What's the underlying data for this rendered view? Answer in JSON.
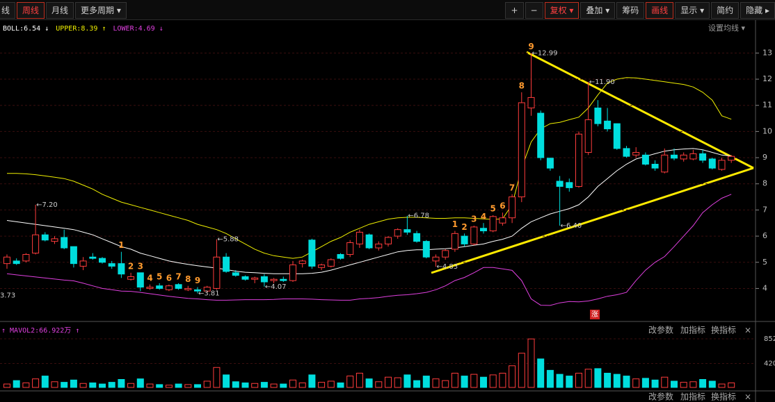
{
  "toolbar": {
    "left": [
      {
        "text": "线",
        "active": false
      },
      {
        "text": "周线",
        "active": true
      },
      {
        "text": "月线",
        "active": false
      },
      {
        "text": "更多周期 ▾",
        "active": false
      }
    ],
    "right": [
      {
        "text": "+",
        "active": false
      },
      {
        "text": "−",
        "active": false
      },
      {
        "text": "复权 ▾",
        "active": true
      },
      {
        "text": "叠加 ▾",
        "active": false
      },
      {
        "text": "筹码",
        "active": false
      },
      {
        "text": "画线",
        "active": true
      },
      {
        "text": "显示 ▾",
        "active": false
      },
      {
        "text": "简约",
        "active": false
      },
      {
        "text": "隐藏 ▸",
        "active": false
      }
    ]
  },
  "settings_button": "设置均线 ▾",
  "panel_buttons": [
    "改参数",
    "加指标",
    "换指标",
    "×"
  ],
  "badge": "涨",
  "chart_data": {
    "type": "candlestick",
    "ylim": [
      2.95,
      13.7
    ],
    "yticks": [
      4,
      5,
      6,
      7,
      8,
      9,
      10,
      11,
      12,
      13
    ],
    "grid": true,
    "open": [
      4.95,
      5.05,
      5.05,
      5.35,
      6.05,
      5.8,
      5.95,
      5.6,
      4.85,
      5.2,
      5.15,
      4.95,
      4.95,
      4.35,
      4.6,
      4.0,
      4.1,
      3.95,
      4.15,
      3.95,
      3.95,
      3.9,
      4.0,
      5.2,
      4.6,
      4.45,
      4.35,
      4.45,
      4.3,
      4.35,
      4.3,
      4.95,
      5.85,
      4.8,
      4.85,
      5.3,
      5.3,
      5.7,
      6.05,
      5.55,
      5.7,
      6.0,
      6.25,
      6.1,
      5.8,
      5.05,
      5.2,
      5.5,
      6.0,
      5.7,
      6.3,
      6.2,
      6.5,
      6.7,
      7.5,
      10.9,
      10.7,
      8.98,
      8.1,
      8.05,
      7.9,
      9.2,
      10.9,
      10.4,
      10.3,
      9.35,
      9.1,
      9.1,
      8.75,
      8.45,
      9.1,
      8.95,
      8.95,
      9.15,
      8.95,
      8.55,
      8.9
    ],
    "high": [
      5.3,
      5.15,
      5.35,
      7.2,
      6.15,
      6.0,
      6.25,
      5.6,
      5.2,
      5.35,
      5.2,
      5.05,
      5.4,
      4.6,
      4.6,
      4.15,
      4.2,
      4.15,
      4.2,
      4.1,
      4.05,
      4.1,
      5.88,
      5.35,
      4.7,
      4.5,
      4.45,
      4.55,
      4.4,
      4.45,
      5.05,
      5.1,
      5.9,
      4.95,
      5.15,
      5.35,
      5.85,
      6.25,
      6.1,
      5.8,
      6.0,
      6.3,
      6.78,
      6.2,
      5.85,
      5.3,
      5.5,
      6.2,
      6.1,
      6.4,
      6.5,
      6.8,
      6.9,
      7.6,
      11.5,
      12.99,
      10.8,
      9.0,
      8.3,
      8.2,
      10.0,
      11.9,
      11.2,
      10.9,
      10.3,
      9.45,
      9.4,
      9.2,
      8.9,
      9.35,
      9.35,
      9.2,
      9.3,
      9.3,
      9.0,
      9.0,
      9.1
    ],
    "low": [
      4.75,
      4.9,
      5.0,
      5.3,
      5.8,
      5.7,
      5.5,
      4.8,
      4.7,
      5.1,
      4.95,
      4.75,
      4.4,
      4.3,
      3.9,
      3.95,
      3.95,
      3.9,
      3.95,
      3.9,
      3.81,
      3.85,
      3.95,
      4.6,
      4.45,
      4.3,
      4.2,
      4.07,
      4.2,
      4.25,
      4.25,
      4.8,
      4.75,
      4.7,
      4.8,
      5.1,
      5.2,
      5.55,
      5.5,
      5.45,
      5.6,
      5.9,
      6.05,
      5.75,
      5.15,
      4.83,
      5.1,
      5.4,
      5.6,
      5.65,
      6.1,
      6.15,
      6.4,
      6.5,
      7.3,
      10.6,
      8.9,
      8.5,
      6.4,
      7.7,
      7.85,
      9.1,
      10.2,
      10.0,
      9.3,
      9.0,
      9.0,
      8.7,
      8.5,
      8.4,
      8.9,
      8.85,
      8.9,
      8.8,
      8.55,
      8.5,
      8.8
    ],
    "close": [
      5.2,
      4.95,
      5.3,
      6.05,
      5.85,
      5.9,
      5.55,
      4.95,
      5.05,
      5.15,
      5.0,
      4.85,
      4.55,
      4.45,
      4.05,
      4.05,
      4.0,
      4.1,
      4.0,
      4.0,
      3.9,
      4.05,
      5.2,
      4.65,
      4.5,
      4.35,
      4.4,
      4.25,
      4.35,
      4.3,
      4.9,
      5.05,
      4.85,
      4.9,
      5.1,
      5.15,
      5.75,
      6.15,
      5.55,
      5.7,
      5.95,
      6.25,
      6.15,
      5.8,
      5.2,
      5.2,
      5.45,
      6.1,
      5.7,
      6.35,
      6.2,
      6.75,
      6.7,
      7.5,
      11.1,
      11.3,
      9.0,
      8.6,
      7.9,
      7.85,
      9.9,
      10.45,
      10.3,
      10.1,
      9.35,
      9.05,
      9.2,
      8.75,
      8.6,
      9.1,
      8.98,
      9.1,
      9.15,
      8.9,
      8.6,
      8.9,
      9.05
    ],
    "up_color": "#ff3c3c",
    "down_color": "#00dede",
    "extreme_labels": [
      null,
      null,
      null,
      "←7.20",
      null,
      null,
      null,
      null,
      null,
      null,
      null,
      null,
      null,
      null,
      null,
      null,
      null,
      null,
      null,
      null,
      "←3.81",
      null,
      "←5.88",
      null,
      null,
      null,
      null,
      "←4.07",
      null,
      null,
      null,
      null,
      null,
      null,
      null,
      null,
      null,
      null,
      null,
      null,
      null,
      null,
      "←6.78",
      null,
      null,
      "←4.83",
      null,
      null,
      null,
      null,
      null,
      null,
      null,
      null,
      null,
      "←12.99",
      null,
      null,
      "←6.40",
      null,
      null,
      "←11.90",
      null,
      null,
      null,
      null,
      null,
      null,
      null,
      null,
      null,
      null,
      null,
      null,
      null,
      null,
      null
    ],
    "count_labels": [
      null,
      null,
      null,
      null,
      null,
      null,
      null,
      null,
      null,
      null,
      null,
      null,
      "1",
      "2",
      "3",
      "4",
      "5",
      "6",
      "7",
      "8",
      "9",
      null,
      null,
      null,
      null,
      null,
      null,
      null,
      null,
      null,
      null,
      null,
      null,
      null,
      null,
      null,
      null,
      null,
      null,
      null,
      null,
      null,
      null,
      null,
      null,
      null,
      null,
      "1",
      "2",
      "3",
      "4",
      "5",
      "6",
      "7",
      "8",
      "9",
      null,
      null,
      null,
      null,
      null,
      null,
      null,
      null,
      null,
      null,
      null,
      null,
      null,
      null,
      null,
      null,
      null,
      null,
      null,
      null,
      null
    ],
    "left_label": {
      "value": 3.73,
      "label": "3.73"
    },
    "series": [
      {
        "name": "BOLL:6.54 ↓",
        "color": "#ffffff",
        "values": [
          6.6,
          6.55,
          6.5,
          6.45,
          6.4,
          6.35,
          6.3,
          6.25,
          6.15,
          6.05,
          5.9,
          5.75,
          5.6,
          5.5,
          5.35,
          5.25,
          5.15,
          5.05,
          4.98,
          4.92,
          4.87,
          4.82,
          4.78,
          4.72,
          4.66,
          4.62,
          4.6,
          4.58,
          4.56,
          4.56,
          4.56,
          4.56,
          4.58,
          4.62,
          4.7,
          4.8,
          4.9,
          5.0,
          5.1,
          5.2,
          5.3,
          5.4,
          5.45,
          5.48,
          5.48,
          5.5,
          5.52,
          5.55,
          5.6,
          5.65,
          5.7,
          5.8,
          5.88,
          6.0,
          6.3,
          6.55,
          6.7,
          6.85,
          6.95,
          7.05,
          7.2,
          7.5,
          7.9,
          8.2,
          8.5,
          8.75,
          8.95,
          9.05,
          9.15,
          9.25,
          9.3,
          9.33,
          9.35,
          9.3,
          9.2,
          9.1,
          9.06
        ]
      },
      {
        "name": "UPPER:8.39 ↑",
        "color": "#f0f000",
        "values": [
          8.4,
          8.4,
          8.38,
          8.35,
          8.3,
          8.25,
          8.2,
          8.1,
          7.95,
          7.8,
          7.6,
          7.45,
          7.3,
          7.2,
          7.1,
          7.0,
          6.9,
          6.8,
          6.7,
          6.6,
          6.45,
          6.35,
          6.25,
          6.1,
          5.9,
          5.7,
          5.5,
          5.35,
          5.25,
          5.2,
          5.15,
          5.2,
          5.4,
          5.6,
          5.8,
          5.95,
          6.15,
          6.3,
          6.45,
          6.55,
          6.65,
          6.7,
          6.72,
          6.72,
          6.7,
          6.68,
          6.68,
          6.7,
          6.7,
          6.68,
          6.66,
          6.64,
          6.66,
          7.2,
          8.6,
          9.6,
          10.1,
          10.3,
          10.35,
          10.45,
          10.55,
          10.9,
          11.4,
          11.85,
          12.0,
          12.06,
          12.05,
          12.0,
          11.95,
          11.9,
          11.85,
          11.8,
          11.7,
          11.5,
          11.2,
          10.6,
          10.47
        ]
      },
      {
        "name": "LOWER:4.69 ↓",
        "color": "#e040e0",
        "values": [
          4.56,
          4.52,
          4.48,
          4.44,
          4.4,
          4.36,
          4.32,
          4.29,
          4.2,
          4.1,
          4.0,
          3.95,
          3.9,
          3.89,
          3.85,
          3.8,
          3.75,
          3.7,
          3.66,
          3.62,
          3.6,
          3.57,
          3.55,
          3.55,
          3.56,
          3.57,
          3.57,
          3.57,
          3.58,
          3.6,
          3.6,
          3.6,
          3.59,
          3.57,
          3.56,
          3.55,
          3.55,
          3.6,
          3.62,
          3.65,
          3.7,
          3.74,
          3.76,
          3.8,
          3.85,
          3.95,
          4.1,
          4.3,
          4.42,
          4.6,
          4.8,
          4.8,
          4.75,
          4.69,
          4.3,
          3.6,
          3.36,
          3.35,
          3.45,
          3.5,
          3.49,
          3.52,
          3.6,
          3.7,
          3.76,
          3.85,
          4.3,
          4.7,
          5.0,
          5.22,
          5.6,
          6.0,
          6.4,
          6.9,
          7.2,
          7.45,
          7.6
        ]
      }
    ],
    "volume": {
      "title": "↑ MAVOL2:66.922万 ↑",
      "ylim": [
        0,
        913
      ],
      "yticks": [
        420,
        852
      ],
      "values": [
        60,
        120,
        80,
        150,
        200,
        100,
        90,
        130,
        70,
        80,
        60,
        90,
        140,
        70,
        150,
        60,
        50,
        40,
        60,
        50,
        50,
        110,
        350,
        220,
        100,
        80,
        70,
        90,
        60,
        60,
        130,
        80,
        220,
        90,
        110,
        80,
        200,
        250,
        150,
        100,
        180,
        170,
        220,
        120,
        200,
        150,
        120,
        250,
        200,
        230,
        180,
        220,
        250,
        380,
        600,
        850,
        500,
        300,
        230,
        200,
        250,
        320,
        330,
        250,
        230,
        200,
        150,
        160,
        130,
        180,
        110,
        90,
        100,
        140,
        110,
        60,
        80
      ]
    }
  }
}
